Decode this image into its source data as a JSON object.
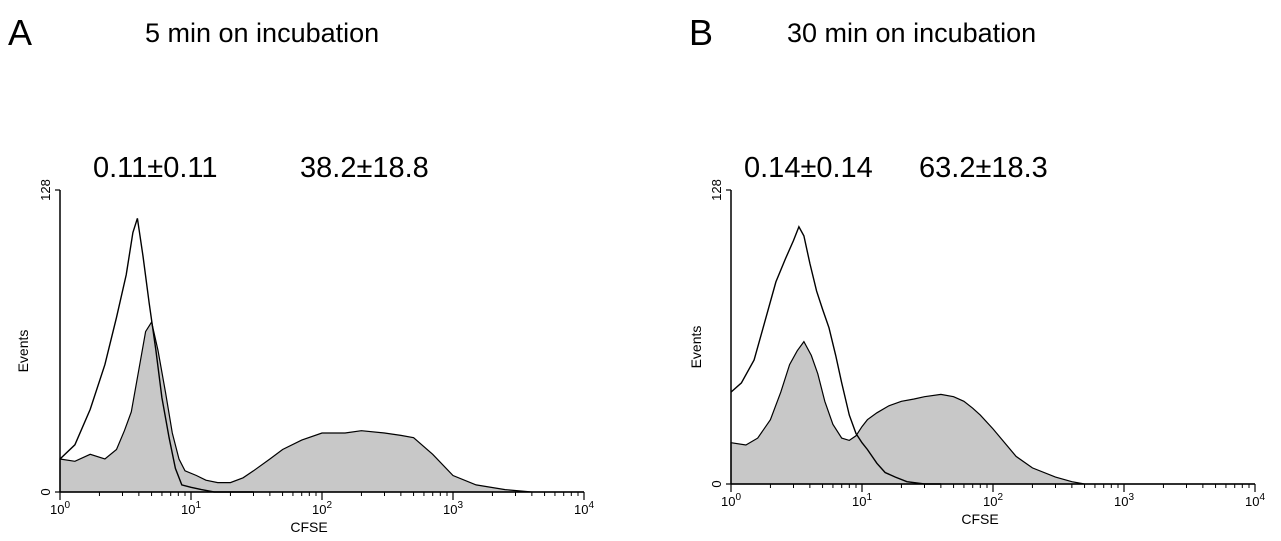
{
  "chart_data": [
    {
      "type": "area",
      "panel_letter": "A",
      "title": "5 min on incubation",
      "xlabel": "CFSE",
      "ylabel": "Events",
      "xscale": "log",
      "xlim": [
        1,
        10000
      ],
      "ylim": [
        0,
        128
      ],
      "xticks": [
        {
          "value": 1,
          "base": "10",
          "exp": "0"
        },
        {
          "value": 10,
          "base": "10",
          "exp": "1"
        },
        {
          "value": 100,
          "base": "10",
          "exp": "2"
        },
        {
          "value": 1000,
          "base": "10",
          "exp": "3"
        },
        {
          "value": 10000,
          "base": "10",
          "exp": "4"
        }
      ],
      "yticks": [
        {
          "value": 0,
          "label": "0"
        },
        {
          "value": 128,
          "label": "128"
        }
      ],
      "annotations": [
        "0.11±0.11",
        "38.2±18.8"
      ],
      "series": [
        {
          "style": "outline",
          "x": [
            1,
            1.3,
            1.7,
            2.2,
            2.7,
            3.2,
            3.6,
            3.9,
            4.3,
            4.8,
            5.4,
            6.0,
            6.8,
            7.6,
            8.5,
            10,
            12,
            15,
            20,
            30
          ],
          "y": [
            14,
            20,
            35,
            54,
            74,
            92,
            110,
            116,
            100,
            80,
            60,
            40,
            23,
            10,
            3,
            2,
            1,
            0,
            0,
            0
          ]
        },
        {
          "style": "filled",
          "x": [
            1,
            1.3,
            1.7,
            2.2,
            2.7,
            3.1,
            3.5,
            4.0,
            4.5,
            5.0,
            5.6,
            6.4,
            7.2,
            8.1,
            9.0,
            11,
            13,
            16,
            20,
            25,
            30,
            40,
            50,
            70,
            100,
            150,
            200,
            300,
            400,
            500,
            700,
            1000,
            1500,
            2500,
            4000,
            10000
          ],
          "y": [
            14,
            13,
            16,
            14,
            18,
            26,
            34,
            52,
            68,
            72,
            60,
            42,
            25,
            14,
            9,
            7,
            5,
            4,
            4,
            6,
            9,
            14,
            18,
            22,
            25,
            25,
            26,
            25,
            24,
            23,
            16,
            7,
            3,
            1,
            0,
            0
          ]
        }
      ]
    },
    {
      "type": "area",
      "panel_letter": "B",
      "title": "30 min on incubation",
      "xlabel": "CFSE",
      "ylabel": "Events",
      "xscale": "log",
      "xlim": [
        1,
        10000
      ],
      "ylim": [
        0,
        128
      ],
      "xticks": [
        {
          "value": 1,
          "base": "10",
          "exp": "0"
        },
        {
          "value": 10,
          "base": "10",
          "exp": "1"
        },
        {
          "value": 100,
          "base": "10",
          "exp": "2"
        },
        {
          "value": 1000,
          "base": "10",
          "exp": "3"
        },
        {
          "value": 10000,
          "base": "10",
          "exp": "4"
        }
      ],
      "yticks": [
        {
          "value": 0,
          "label": "0"
        },
        {
          "value": 128,
          "label": "128"
        }
      ],
      "annotations": [
        "0.14±0.14",
        "63.2±18.3"
      ],
      "series": [
        {
          "style": "outline",
          "x": [
            1,
            1.2,
            1.5,
            1.8,
            2.2,
            2.6,
            3.0,
            3.3,
            3.6,
            4.0,
            4.5,
            5.0,
            5.6,
            6.3,
            7.0,
            8.0,
            9.0,
            10,
            11,
            13,
            15,
            18,
            22,
            30,
            40
          ],
          "y": [
            40,
            44,
            54,
            70,
            88,
            98,
            106,
            112,
            108,
            96,
            84,
            76,
            68,
            56,
            44,
            30,
            22,
            18,
            15,
            9,
            5,
            3,
            1,
            0,
            0
          ]
        },
        {
          "style": "filled",
          "x": [
            1,
            1.3,
            1.6,
            2.0,
            2.4,
            2.8,
            3.2,
            3.6,
            4.1,
            4.6,
            5.2,
            6.0,
            7.0,
            8.0,
            9.0,
            10,
            11,
            13,
            16,
            20,
            25,
            30,
            40,
            50,
            60,
            70,
            80,
            100,
            150,
            200,
            300,
            400,
            500,
            700,
            1000,
            10000
          ],
          "y": [
            18,
            17,
            20,
            28,
            40,
            52,
            58,
            62,
            56,
            48,
            36,
            26,
            20,
            19,
            21,
            25,
            28,
            31,
            34,
            36,
            37,
            38,
            39,
            38,
            36,
            33,
            30,
            24,
            12,
            7,
            3,
            1,
            0,
            0,
            0,
            0
          ]
        }
      ]
    }
  ]
}
